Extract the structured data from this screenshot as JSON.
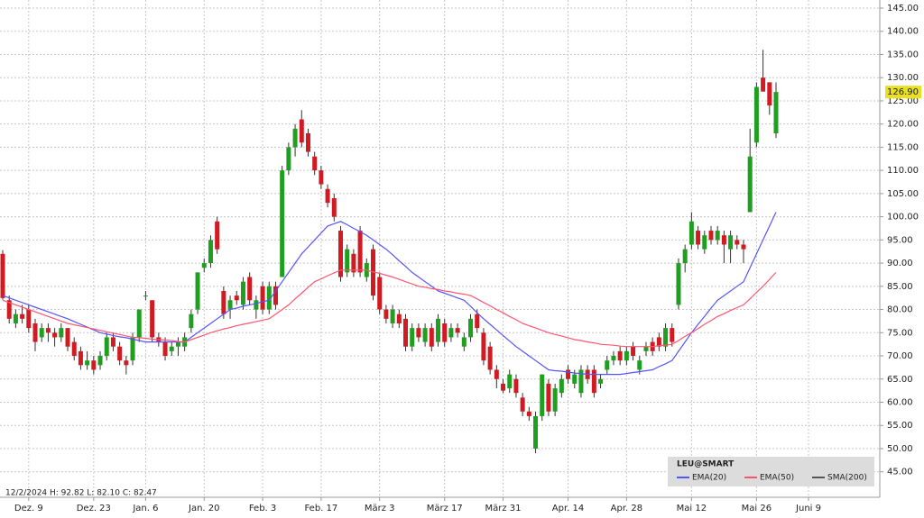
{
  "chart_data": {
    "type": "candlestick",
    "symbol": "LEU@SMART",
    "info_text": "12/2/2024  H: 92.82  L: 82.10  C: 82.47",
    "categories": [
      null,
      null,
      null,
      null,
      "Dez. 9",
      null,
      null,
      null,
      null,
      null,
      null,
      null,
      null,
      null,
      "Dez. 23",
      null,
      null,
      null,
      null,
      null,
      null,
      null,
      "Jan. 6",
      null,
      null,
      null,
      null,
      null,
      null,
      null,
      null,
      "Jan. 20",
      null,
      null,
      null,
      null,
      null,
      null,
      null,
      null,
      "Feb. 3",
      null,
      null,
      null,
      null,
      null,
      null,
      null,
      null,
      "Feb. 17",
      null,
      null,
      null,
      null,
      null,
      null,
      null,
      null,
      "März 3",
      null,
      null,
      null,
      null,
      null,
      null,
      null,
      null,
      null,
      "März 17",
      null,
      null,
      null,
      null,
      null,
      null,
      null,
      null,
      "März 31",
      null,
      null,
      null,
      null,
      null,
      null,
      null,
      null,
      null,
      "Apr. 14",
      null,
      null,
      null,
      null,
      null,
      null,
      null,
      null,
      "Apr. 28",
      null,
      null,
      null,
      null,
      null,
      null,
      null,
      null,
      null,
      "Mai 12",
      null,
      null,
      null,
      null,
      null,
      null,
      null,
      null,
      null,
      "Mai 26",
      null,
      null,
      null,
      null,
      null,
      null,
      null,
      "Juni 9"
    ],
    "open": [
      92,
      82,
      77,
      79,
      80,
      77,
      74,
      76,
      75,
      74,
      76,
      73,
      71,
      68,
      69,
      68,
      70,
      74,
      72,
      69,
      69,
      74,
      83,
      82,
      74,
      73,
      71,
      72,
      72,
      76,
      80,
      89,
      90,
      99,
      84,
      80,
      83,
      81,
      87,
      80,
      85,
      80,
      85,
      87,
      110,
      115,
      121,
      118,
      113,
      110,
      106,
      104,
      97,
      88,
      92,
      97,
      87,
      93,
      87,
      80,
      77,
      79,
      78,
      72,
      76,
      73,
      76,
      73,
      77,
      74,
      76,
      72,
      74,
      79,
      75,
      72,
      67,
      64,
      63,
      65,
      61,
      58,
      50,
      57,
      64,
      58,
      62,
      67,
      64,
      62,
      67,
      67,
      64,
      67,
      69,
      71,
      69,
      72,
      67,
      71,
      73,
      74,
      72,
      76,
      81,
      90,
      94,
      97,
      93,
      97,
      95,
      96,
      93,
      95,
      94,
      101,
      116,
      130,
      129,
      118,
      null,
      null,
      null,
      null,
      null
    ],
    "high": [
      92.82,
      83,
      80,
      81,
      81,
      78,
      77,
      77,
      76,
      77,
      76,
      74,
      72,
      71,
      70,
      71,
      75,
      75,
      73,
      70,
      75,
      80,
      84,
      82,
      75,
      74,
      73,
      74,
      75,
      80,
      88,
      91,
      96,
      100,
      85,
      83,
      84,
      87,
      88,
      83,
      86,
      86,
      86,
      111,
      116,
      120,
      123,
      119,
      114,
      111,
      107,
      105,
      98,
      94,
      93,
      98,
      91,
      94,
      88,
      81,
      81,
      80,
      79,
      77,
      77,
      77,
      77,
      79,
      78,
      77,
      77,
      75,
      79,
      80,
      76,
      73,
      68,
      65,
      67,
      66,
      62,
      59,
      58,
      66,
      65,
      64,
      66,
      68,
      67,
      68,
      68,
      68,
      66,
      70,
      71,
      72,
      72,
      73,
      70,
      73,
      74,
      75,
      77,
      77,
      91,
      94,
      101,
      98,
      97,
      98,
      98,
      97,
      97,
      96,
      95,
      119,
      129,
      136,
      129,
      129,
      null,
      null,
      null,
      null,
      null
    ],
    "low": [
      82.1,
      77,
      76,
      77,
      75,
      71,
      73,
      73,
      72,
      73,
      71,
      69,
      67,
      67,
      66,
      67,
      69,
      71,
      68,
      66,
      68,
      73,
      82,
      73,
      72,
      69,
      70,
      70,
      71,
      75,
      79,
      88,
      89,
      92,
      78,
      78,
      81,
      80,
      81,
      78,
      79,
      79,
      80,
      87,
      109,
      113,
      115,
      113,
      109,
      106,
      102,
      99,
      86,
      87,
      87,
      87,
      86,
      82,
      79,
      77,
      76,
      76,
      71,
      71,
      73,
      72,
      71,
      72,
      72,
      73,
      74,
      71,
      73,
      75,
      68,
      66,
      63,
      62,
      62,
      61,
      57,
      56,
      49,
      56,
      57,
      57,
      61,
      64,
      63,
      61,
      64,
      61,
      63,
      66,
      68,
      68,
      68,
      69,
      66,
      70,
      70,
      71,
      71,
      72,
      80,
      88,
      93,
      93,
      92,
      94,
      94,
      90,
      90,
      93,
      90,
      101,
      115,
      127,
      122,
      117,
      null,
      null,
      null,
      null,
      null
    ],
    "close": [
      82.47,
      78,
      79,
      78,
      76,
      73,
      76,
      75,
      74,
      76,
      72,
      70,
      68,
      69,
      67,
      70,
      74,
      72,
      69,
      68,
      74,
      80,
      83,
      74,
      73,
      70,
      72,
      73,
      74,
      79,
      88,
      90,
      95,
      93,
      79,
      82,
      82,
      86,
      82,
      82,
      80,
      85,
      81,
      110,
      115,
      119,
      116,
      114,
      110,
      107,
      103,
      100,
      87,
      93,
      88,
      88,
      90,
      83,
      80,
      78,
      80,
      77,
      72,
      76,
      74,
      76,
      72,
      78,
      73,
      76,
      75,
      74,
      78,
      76,
      69,
      67,
      65,
      62.5,
      66,
      62,
      58,
      57,
      57,
      66,
      58,
      63,
      65,
      65,
      66,
      67,
      65,
      62,
      65,
      69,
      70,
      69,
      71,
      70,
      69,
      72,
      71,
      72,
      76,
      73,
      90,
      93,
      99,
      94,
      96,
      95,
      97,
      94,
      96,
      94,
      93,
      113,
      128,
      127,
      124,
      126.9,
      null,
      null,
      null,
      null,
      null
    ],
    "up_color": "#1f9e1f",
    "down_color": "#d11a22",
    "series": [
      {
        "name": "EMA(20)",
        "color": "#5555ff",
        "values": [
          83,
          82.5,
          82,
          81.5,
          81,
          80.5,
          80,
          79.5,
          79,
          78.5,
          78,
          77.4,
          76.8,
          76.2,
          75.6,
          75,
          74.7,
          74.4,
          74.1,
          73.9,
          73.6,
          73.3,
          73,
          73,
          73,
          73,
          73,
          73,
          73,
          74,
          75,
          76,
          77,
          78,
          79,
          80,
          80.3,
          80.7,
          81,
          81.3,
          81.7,
          82,
          84,
          86,
          88,
          90,
          92,
          93.5,
          95,
          96.5,
          98,
          98.5,
          99,
          98.3,
          97.5,
          96.8,
          96,
          95,
          94,
          93,
          91.8,
          90.5,
          89.3,
          88,
          87,
          86,
          85,
          84,
          83.5,
          83,
          82.5,
          82,
          80.7,
          79.3,
          78,
          76.8,
          75.6,
          74.4,
          73.2,
          72,
          71,
          70,
          69,
          68,
          67,
          66.8,
          66.7,
          66.5,
          66.3,
          66.2,
          66,
          66,
          66,
          66,
          66,
          66,
          66.2,
          66.4,
          66.6,
          66.8,
          67,
          67.7,
          68.3,
          69,
          71,
          73,
          75,
          76.8,
          78.5,
          80.3,
          82,
          83,
          84,
          85,
          86,
          89,
          92,
          95,
          98,
          101,
          null,
          null,
          null,
          null,
          null
        ]
      },
      {
        "name": "EMA(50)",
        "color": "#ff5570",
        "values": [
          82,
          81.5,
          81,
          80.5,
          80,
          79.5,
          79,
          78.5,
          78,
          77.5,
          77,
          76.7,
          76.4,
          76.1,
          75.8,
          75.5,
          75.2,
          74.9,
          74.6,
          74.3,
          74,
          73.9,
          73.8,
          73.6,
          73.5,
          73.4,
          73.3,
          73.1,
          73,
          73.5,
          74,
          74.5,
          75,
          75.4,
          75.8,
          76.1,
          76.5,
          76.8,
          77.1,
          77.4,
          77.7,
          78,
          79,
          80,
          81,
          82.3,
          83.5,
          84.8,
          86,
          86.6,
          87.3,
          87.9,
          88.5,
          88.5,
          88.5,
          88.5,
          88.5,
          88.1,
          87.8,
          87.4,
          87,
          86.5,
          86,
          85.5,
          85,
          84.8,
          84.5,
          84.3,
          84,
          83.8,
          83.5,
          83.3,
          83,
          82.3,
          81.5,
          80.8,
          80,
          79.3,
          78.5,
          77.8,
          77,
          76.5,
          76,
          75.5,
          75,
          74.6,
          74.3,
          73.9,
          73.5,
          73.3,
          73,
          72.8,
          72.5,
          72.4,
          72.3,
          72.1,
          72,
          72,
          72,
          72,
          72,
          72.2,
          72.3,
          72.5,
          73.3,
          74.2,
          75,
          75.9,
          76.8,
          77.6,
          78.5,
          79.1,
          79.8,
          80.4,
          81,
          82.3,
          83.7,
          85,
          86.5,
          88,
          null,
          null,
          null,
          null,
          null
        ]
      }
    ],
    "legend_extra": {
      "name": "SMA(200)",
      "color": "#555555"
    },
    "last_price": {
      "value": 126.9,
      "label": "126.90"
    },
    "ylim": [
      39.5,
      146.75
    ],
    "yticks": [
      {
        "value": 45,
        "label": "45.00"
      },
      {
        "value": 50,
        "label": "50.00"
      },
      {
        "value": 55,
        "label": "55.00"
      },
      {
        "value": 60,
        "label": "60.00"
      },
      {
        "value": 65,
        "label": "65.00"
      },
      {
        "value": 70,
        "label": "70.00"
      },
      {
        "value": 75,
        "label": "75.00"
      },
      {
        "value": 80,
        "label": "80.00"
      },
      {
        "value": 85,
        "label": "85.00"
      },
      {
        "value": 90,
        "label": "90.00"
      },
      {
        "value": 95,
        "label": "95.00"
      },
      {
        "value": 100,
        "label": "100.00"
      },
      {
        "value": 105,
        "label": "105.00"
      },
      {
        "value": 110,
        "label": "110.00"
      },
      {
        "value": 115,
        "label": "115.00"
      },
      {
        "value": 120,
        "label": "120.00"
      },
      {
        "value": 125,
        "label": "125.00"
      },
      {
        "value": 130,
        "label": "130.00"
      },
      {
        "value": 135,
        "label": "135.00"
      },
      {
        "value": 140,
        "label": "140.00"
      },
      {
        "value": 145,
        "label": "145.00"
      }
    ],
    "grid": true
  }
}
